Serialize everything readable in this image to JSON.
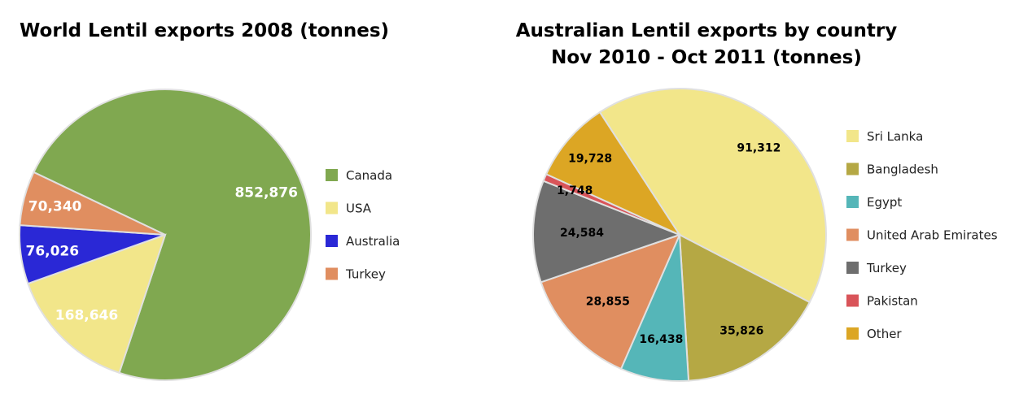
{
  "chart_data": [
    {
      "type": "pie",
      "title": "World Lentil exports 2008 (tonnes)",
      "slices": [
        {
          "name": "Canada",
          "value": 852876,
          "label": "852,876",
          "color": "#80a850",
          "label_color": "#ffffff"
        },
        {
          "name": "USA",
          "value": 168646,
          "label": "168,646",
          "color": "#f2e68a",
          "label_color": "#ffffff"
        },
        {
          "name": "Australia",
          "value": 76026,
          "label": "76,026",
          "color": "#2a28d6",
          "label_color": "#ffffff"
        },
        {
          "name": "Turkey",
          "value": 70340,
          "label": "70,340",
          "color": "#e08e60",
          "label_color": "#ffffff"
        }
      ],
      "legend_position": "right"
    },
    {
      "type": "pie",
      "title": "Australian Lentil exports by country",
      "subtitle": "Nov 2010 - Oct 2011 (tonnes)",
      "slices": [
        {
          "name": "Sri Lanka",
          "value": 91312,
          "label": "91,312",
          "color": "#f2e68a",
          "label_color": "#000000"
        },
        {
          "name": "Bangladesh",
          "value": 35826,
          "label": "35,826",
          "color": "#b5a844",
          "label_color": "#000000"
        },
        {
          "name": "Egypt",
          "value": 16438,
          "label": "16,438",
          "color": "#55b6b8",
          "label_color": "#000000"
        },
        {
          "name": "United Arab Emirates",
          "value": 28855,
          "label": "28,855",
          "color": "#e08e60",
          "label_color": "#000000"
        },
        {
          "name": "Turkey",
          "value": 24584,
          "label": "24,584",
          "color": "#6e6e6e",
          "label_color": "#000000"
        },
        {
          "name": "Pakistan",
          "value": 1748,
          "label": "1,748",
          "color": "#d95459",
          "label_color": "#000000"
        },
        {
          "name": "Other",
          "value": 19728,
          "label": "19,728",
          "color": "#dca624",
          "label_color": "#000000"
        }
      ],
      "legend_position": "right"
    }
  ]
}
